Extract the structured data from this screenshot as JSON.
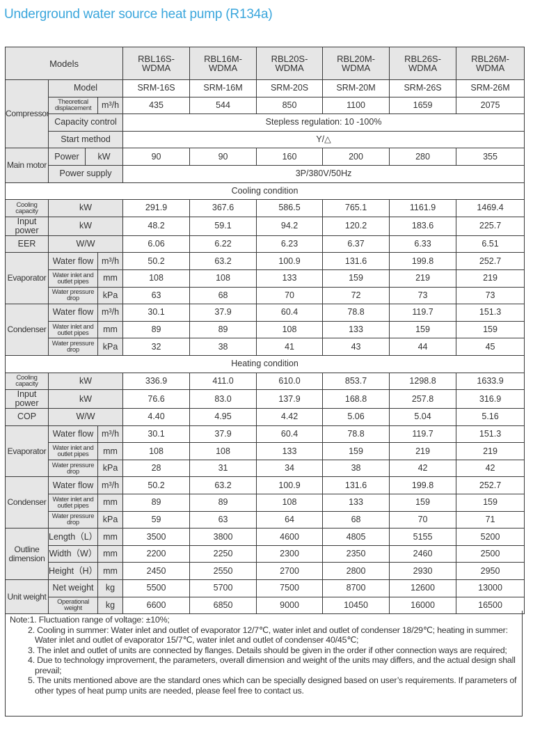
{
  "title": "Underground water source heat pump (R134a)",
  "header": {
    "label": "Models",
    "models": [
      "RBL16S-\nWDMA",
      "RBL16M-\nWDMA",
      "RBL20S-\nWDMA",
      "RBL20M-\nWDMA",
      "RBL26S-\nWDMA",
      "RBL26M-\nWDMA"
    ]
  },
  "sections": [
    {
      "type": "group",
      "group": "Compressor",
      "rows": [
        {
          "label": "Model",
          "values": [
            "SRM-16S",
            "SRM-16M",
            "SRM-20S",
            "SRM-20M",
            "SRM-26S",
            "SRM-26M"
          ]
        },
        {
          "label": "Theoretical displacement",
          "small": true,
          "unit": "m³/h",
          "values": [
            "435",
            "544",
            "850",
            "1100",
            "1659",
            "2075"
          ]
        },
        {
          "label": "Capacity control",
          "merged": "Stepless regulation: 10 -100%"
        },
        {
          "label": "Start method",
          "merged": "Y/△"
        }
      ]
    },
    {
      "type": "group",
      "group": "Main motor",
      "rows": [
        {
          "label": "Power",
          "unit": "kW",
          "narrow": true,
          "values": [
            "90",
            "90",
            "160",
            "200",
            "280",
            "355"
          ]
        },
        {
          "label": "Power supply",
          "merged": "3P/380V/50Hz"
        }
      ]
    },
    {
      "type": "section",
      "label": "Cooling condition"
    },
    {
      "type": "single",
      "label": "Cooling capacity",
      "small": true,
      "unit": "kW",
      "values": [
        "291.9",
        "367.6",
        "586.5",
        "765.1",
        "1161.9",
        "1469.4"
      ]
    },
    {
      "type": "single",
      "label": "Input power",
      "unit": "kW",
      "values": [
        "48.2",
        "59.1",
        "94.2",
        "120.2",
        "183.6",
        "225.7"
      ]
    },
    {
      "type": "single",
      "label": "EER",
      "unit": "W/W",
      "values": [
        "6.06",
        "6.22",
        "6.23",
        "6.37",
        "6.33",
        "6.51"
      ]
    },
    {
      "type": "group",
      "group": "Evaporator",
      "rows": [
        {
          "label": "Water flow",
          "unit": "m³/h",
          "values": [
            "50.2",
            "63.2",
            "100.9",
            "131.6",
            "199.8",
            "252.7"
          ]
        },
        {
          "label": "Water inlet and outlet pipes",
          "small": true,
          "unit": "mm",
          "values": [
            "108",
            "108",
            "133",
            "159",
            "219",
            "219"
          ]
        },
        {
          "label": "Water pressure drop",
          "small": true,
          "unit": "kPa",
          "values": [
            "63",
            "68",
            "70",
            "72",
            "73",
            "73"
          ]
        }
      ]
    },
    {
      "type": "group",
      "group": "Condenser",
      "rows": [
        {
          "label": "Water flow",
          "unit": "m³/h",
          "values": [
            "30.1",
            "37.9",
            "60.4",
            "78.8",
            "119.7",
            "151.3"
          ]
        },
        {
          "label": "Water inlet and outlet pipes",
          "small": true,
          "unit": "mm",
          "values": [
            "89",
            "89",
            "108",
            "133",
            "159",
            "159"
          ]
        },
        {
          "label": "Water pressure drop",
          "small": true,
          "unit": "kPa",
          "values": [
            "32",
            "38",
            "41",
            "43",
            "44",
            "45"
          ]
        }
      ]
    },
    {
      "type": "section",
      "label": "Heating condition"
    },
    {
      "type": "single",
      "label": "Cooling capacity",
      "small": true,
      "unit": "kW",
      "values": [
        "336.9",
        "411.0",
        "610.0",
        "853.7",
        "1298.8",
        "1633.9"
      ]
    },
    {
      "type": "single",
      "label": "Input power",
      "unit": "kW",
      "values": [
        "76.6",
        "83.0",
        "137.9",
        "168.8",
        "257.8",
        "316.9"
      ]
    },
    {
      "type": "single",
      "label": "COP",
      "unit": "W/W",
      "values": [
        "4.40",
        "4.95",
        "4.42",
        "5.06",
        "5.04",
        "5.16"
      ]
    },
    {
      "type": "group",
      "group": "Evaporator",
      "rows": [
        {
          "label": "Water flow",
          "unit": "m³/h",
          "values": [
            "30.1",
            "37.9",
            "60.4",
            "78.8",
            "119.7",
            "151.3"
          ]
        },
        {
          "label": "Water inlet and outlet pipes",
          "small": true,
          "unit": "mm",
          "values": [
            "108",
            "108",
            "133",
            "159",
            "219",
            "219"
          ]
        },
        {
          "label": "Water pressure drop",
          "small": true,
          "unit": "kPa",
          "values": [
            "28",
            "31",
            "34",
            "38",
            "42",
            "42"
          ]
        }
      ]
    },
    {
      "type": "group",
      "group": "Condenser",
      "rows": [
        {
          "label": "Water flow",
          "unit": "m³/h",
          "values": [
            "50.2",
            "63.2",
            "100.9",
            "131.6",
            "199.8",
            "252.7"
          ]
        },
        {
          "label": "Water inlet and outlet pipes",
          "small": true,
          "unit": "mm",
          "values": [
            "89",
            "89",
            "108",
            "133",
            "159",
            "159"
          ]
        },
        {
          "label": "Water pressure drop",
          "small": true,
          "unit": "kPa",
          "values": [
            "59",
            "63",
            "64",
            "68",
            "70",
            "71"
          ]
        }
      ]
    },
    {
      "type": "group",
      "group": "Outline dimension",
      "rows": [
        {
          "label": "Length（L）",
          "unit": "mm",
          "values": [
            "3500",
            "3800",
            "4600",
            "4805",
            "5155",
            "5200"
          ]
        },
        {
          "label": "Width（W）",
          "unit": "mm",
          "values": [
            "2200",
            "2250",
            "2300",
            "2350",
            "2460",
            "2500"
          ]
        },
        {
          "label": "Height（H）",
          "unit": "mm",
          "values": [
            "2450",
            "2550",
            "2700",
            "2800",
            "2930",
            "2950"
          ]
        }
      ]
    },
    {
      "type": "group",
      "group": "Unit weight",
      "rows": [
        {
          "label": "Net weight",
          "unit": "kg",
          "values": [
            "5500",
            "5700",
            "7500",
            "8700",
            "12600",
            "13000"
          ]
        },
        {
          "label": "Operational weight",
          "small": true,
          "unit": "kg",
          "values": [
            "6600",
            "6850",
            "9000",
            "10450",
            "16000",
            "16500"
          ]
        }
      ]
    }
  ],
  "notes": [
    "Note:1. Fluctuation range of voltage: ±10%;",
    "2. Cooling in summer: Water inlet and outlet of evaporator 12/7℃, water inlet and outlet of condenser 18/29℃; heating in summer: Water inlet and outlet of evaporator 15/7℃, water inlet and outlet of condenser 40/45℃;",
    "3. The inlet and outlet of units are connected by flanges. Details should be given in the order if other connection ways are required;",
    "4. Due to technology improvement, the parameters, overall dimension and weight of the units may differs, and the actual design shall prevail;",
    "5. The units mentioned above are the standard ones which can be specially designed based on user’s requirements. If parameters of other types of heat pump units are needed, please feel free to contact us."
  ]
}
